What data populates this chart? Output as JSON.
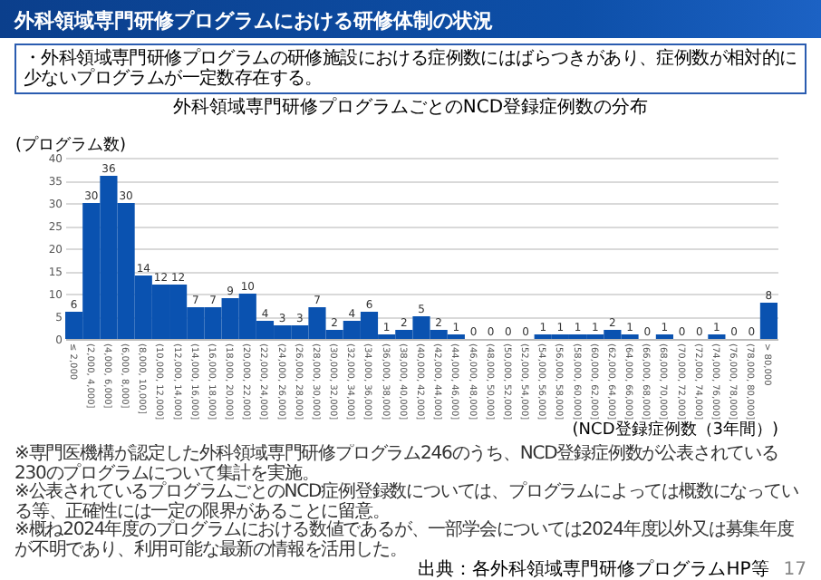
{
  "chart_data": {
    "type": "bar",
    "title": "外科領域専門研修プログラムにおける研修体制の状況",
    "subtitle": "・外科領域専門研修プログラムの研修施設における症例数にはばらつきがあり、症例数が相対的に少ないプログラムが一定数存在する。",
    "annotations": [
      "外科領域専門研修プログラムごとのNCD登録症例数の分布",
      "※専門医機構が認定した外科領域専門研修プログラム246のうち、NCD登録症例数が公表されている230のプログラムについて集計を実施。",
      "※公表されているプログラムごとのNCD症例登録数については、プログラムによっては概数になっている等、正確性には一定の限界があることに留意。",
      "※概ね2024年度のプログラムにおける数値であるが、一部学会については2024年度以外又は募集年度が不明であり、利用可能な最新の情報を活用した。",
      "出典：各外科領域専門研修プログラムHP等",
      "17"
    ],
    "ylabel": "(プログラム数)",
    "xlabel": "(NCD登録症例数（3年間）)",
    "categories": [
      "≤ 2,000",
      "(2,000, 4,000]",
      "(4,000, 6,000]",
      "(6,000, 8,000]",
      "(8,000, 10,000]",
      "(10,000, 12,000]",
      "(12,000, 14,000]",
      "(14,000, 16,000]",
      "(16,000, 18,000]",
      "(18,000, 20,000]",
      "(20,000, 22,000]",
      "(22,000, 24,000]",
      "(24,000, 26,000]",
      "(26,000, 28,000]",
      "(28,000, 30,000]",
      "(30,000, 32,000]",
      "(32,000, 34,000]",
      "(34,000, 36,000]",
      "(36,000, 38,000]",
      "(38,000, 40,000]",
      "(40,000, 42,000]",
      "(42,000, 44,000]",
      "(44,000, 46,000]",
      "(46,000, 48,000]",
      "(48,000, 50,000]",
      "(50,000, 52,000]",
      "(52,000, 54,000]",
      "(54,000, 56,000]",
      "(56,000, 58,000]",
      "(58,000, 60,000]",
      "(60,000, 62,000]",
      "(62,000, 64,000]",
      "(64,000, 66,000]",
      "(66,000, 68,000]",
      "(68,000, 70,000]",
      "(70,000, 72,000]",
      "(72,000, 74,000]",
      "(74,000, 76,000]",
      "(76,000, 78,000]",
      "(78,000, 80,000]",
      "> 80,000"
    ],
    "values": [
      6,
      30,
      36,
      30,
      14,
      12,
      12,
      7,
      7,
      9,
      10,
      4,
      3,
      3,
      7,
      2,
      4,
      6,
      1,
      2,
      5,
      2,
      1,
      0,
      0,
      0,
      0,
      1,
      1,
      1,
      1,
      2,
      1,
      0,
      1,
      0,
      0,
      1,
      0,
      0,
      8
    ],
    "color": "#0a52b0",
    "ylim": [
      0,
      40
    ],
    "yticks": [
      0,
      5,
      10,
      15,
      20,
      25,
      30,
      35,
      40
    ],
    "grid": "y",
    "data_labels": true
  }
}
